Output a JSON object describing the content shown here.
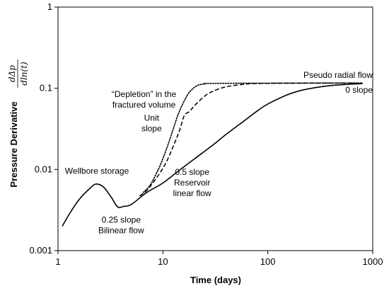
{
  "chart_data": {
    "type": "line",
    "title": "",
    "xlabel": "Time (days)",
    "ylabel": "Pressure Derivative",
    "ylabel_fraction": {
      "numerator": "dΔp",
      "denominator": "dln(t)"
    },
    "x_scale": "log",
    "y_scale": "log",
    "xlim": [
      1,
      1000
    ],
    "ylim": [
      0.001,
      1
    ],
    "x_ticks": [
      {
        "value": 1,
        "label": "1"
      },
      {
        "value": 10,
        "label": "10"
      },
      {
        "value": 100,
        "label": "100"
      },
      {
        "value": 1000,
        "label": "1000"
      }
    ],
    "y_ticks": [
      {
        "value": 0.001,
        "label": "0.001"
      },
      {
        "value": 0.01,
        "label": "0.01"
      },
      {
        "value": 0.1,
        "label": "0.1"
      },
      {
        "value": 1,
        "label": "1"
      }
    ],
    "grid": false,
    "legend": "none",
    "series": [
      {
        "style": "solid",
        "color": "#000000",
        "points": [
          [
            1.1,
            0.002
          ],
          [
            1.3,
            0.0029
          ],
          [
            1.6,
            0.0043
          ],
          [
            2.0,
            0.0058
          ],
          [
            2.3,
            0.0066
          ],
          [
            2.7,
            0.0061
          ],
          [
            3.2,
            0.0046
          ],
          [
            3.7,
            0.00345
          ],
          [
            4.2,
            0.0035
          ],
          [
            5.0,
            0.0037
          ],
          [
            7.0,
            0.0052
          ],
          [
            10,
            0.0068
          ],
          [
            15,
            0.0102
          ],
          [
            20,
            0.0135
          ],
          [
            30,
            0.02
          ],
          [
            40,
            0.027
          ],
          [
            60,
            0.04
          ],
          [
            80,
            0.053
          ],
          [
            100,
            0.064
          ],
          [
            150,
            0.082
          ],
          [
            200,
            0.093
          ],
          [
            300,
            0.103
          ],
          [
            400,
            0.108
          ],
          [
            600,
            0.112
          ],
          [
            800,
            0.114
          ]
        ]
      },
      {
        "style": "dashed",
        "color": "#000000",
        "points": [
          [
            6.0,
            0.0047
          ],
          [
            7.0,
            0.0055
          ],
          [
            8.0,
            0.0068
          ],
          [
            9.5,
            0.0093
          ],
          [
            11,
            0.013
          ],
          [
            13,
            0.0215
          ],
          [
            14.5,
            0.031
          ],
          [
            16,
            0.046
          ],
          [
            18,
            0.052
          ],
          [
            20,
            0.061
          ],
          [
            25,
            0.08
          ],
          [
            30,
            0.092
          ],
          [
            40,
            0.104
          ],
          [
            60,
            0.112
          ],
          [
            100,
            0.115
          ],
          [
            800,
            0.116
          ]
        ]
      },
      {
        "style": "dotted",
        "color": "#000000",
        "points": [
          [
            6.5,
            0.0052
          ],
          [
            7.5,
            0.0063
          ],
          [
            8.5,
            0.0085
          ],
          [
            9.5,
            0.0115
          ],
          [
            11,
            0.019
          ],
          [
            12.5,
            0.031
          ],
          [
            14,
            0.048
          ],
          [
            16,
            0.07
          ],
          [
            18,
            0.09
          ],
          [
            21,
            0.107
          ],
          [
            25,
            0.113
          ],
          [
            35,
            0.115
          ],
          [
            800,
            0.116
          ]
        ]
      }
    ],
    "annotations": [
      {
        "id": "wellbore",
        "lines": [
          "Wellbore storage"
        ],
        "x": 2.35,
        "y": 0.0088,
        "anchor": "middle"
      },
      {
        "id": "bilinear",
        "lines": [
          "0.25 slope",
          "Bilinear flow"
        ],
        "x": 4.0,
        "y": 0.0022,
        "anchor": "middle"
      },
      {
        "id": "halfslope",
        "lines": [
          "0.5 slope",
          "Reservoir",
          "linear flow"
        ],
        "x": 19.0,
        "y": 0.0086,
        "anchor": "middle"
      },
      {
        "id": "unit",
        "lines": [
          "Unit",
          "slope"
        ],
        "x": 7.8,
        "y": 0.04,
        "anchor": "middle"
      },
      {
        "id": "depletion",
        "lines": [
          "“Depletion” in the",
          "fractured volume"
        ],
        "x": 6.6,
        "y": 0.078,
        "anchor": "middle"
      },
      {
        "id": "radial",
        "lines": [
          "Pseudo radial flow"
        ],
        "x": 1000,
        "y": 0.134,
        "anchor": "end"
      },
      {
        "id": "zeroslope",
        "lines": [
          "0 slope"
        ],
        "x": 740,
        "y": 0.088,
        "anchor": "middle"
      }
    ]
  }
}
